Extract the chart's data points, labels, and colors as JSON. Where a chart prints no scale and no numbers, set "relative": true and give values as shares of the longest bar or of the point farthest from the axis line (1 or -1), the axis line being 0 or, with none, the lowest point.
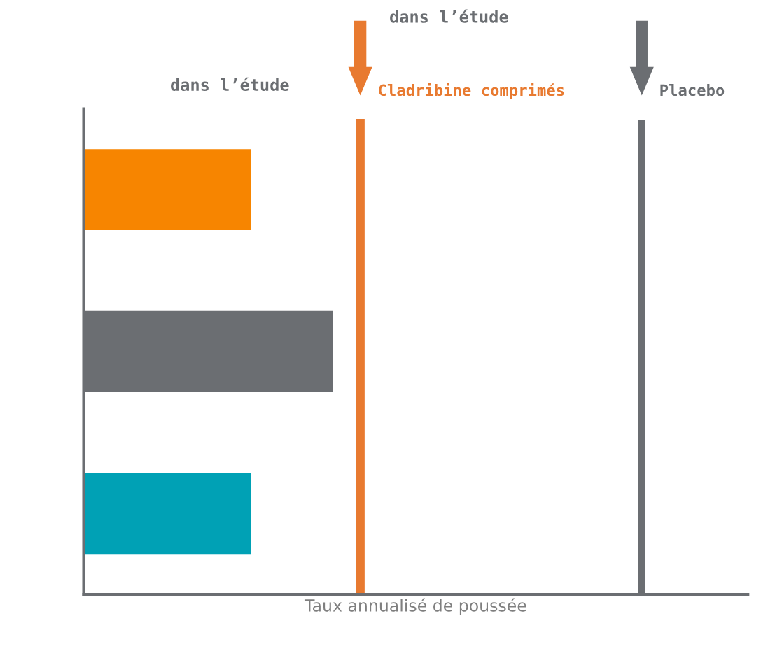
{
  "chart_data": {
    "type": "bar",
    "orientation": "horizontal",
    "relative": true,
    "xlabel": "Taux annualisé de poussée",
    "categories": [
      null,
      null,
      null
    ],
    "values": [
      0.67,
      1,
      0.67
    ],
    "colors": [
      "#f78500",
      "#6b6e72",
      "#00a1b5"
    ],
    "grid": false,
    "legend": false,
    "ref_lines": [
      {
        "axis": "x",
        "value": 1.11,
        "label": "Cladribine comprimés",
        "color": "#e87a30"
      },
      {
        "axis": "x",
        "value": 2.24,
        "label": "Placebo",
        "color": "#6b6e72"
      }
    ],
    "annotations": [
      "dans l’étude",
      "dans l’étude"
    ]
  }
}
